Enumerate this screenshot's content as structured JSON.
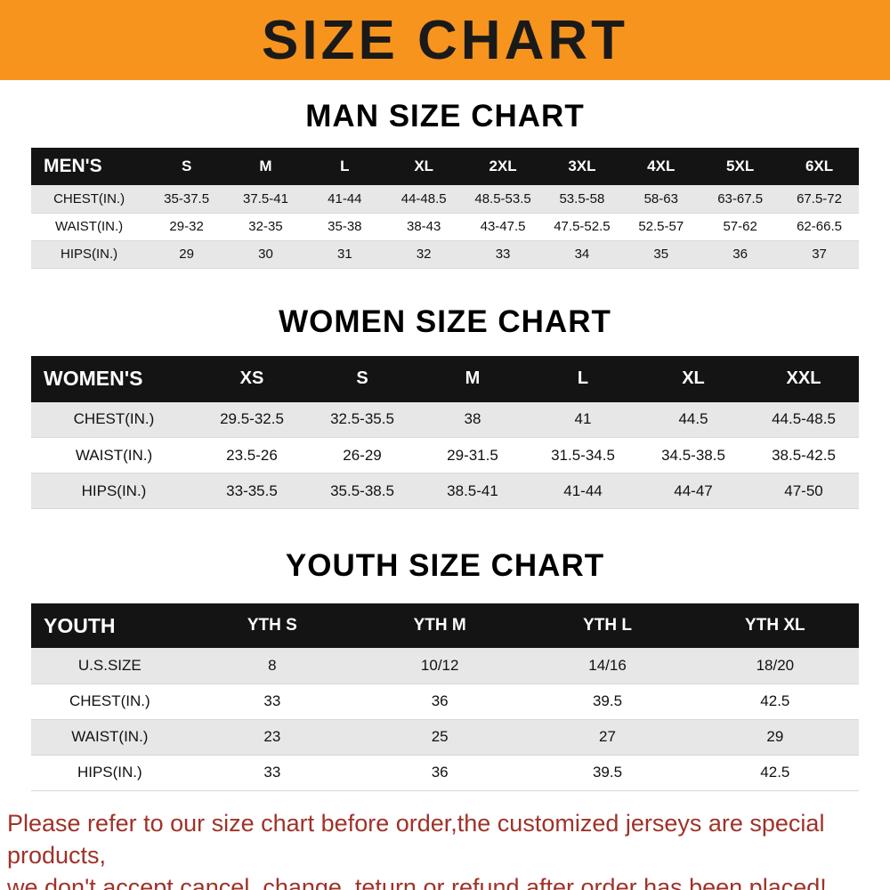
{
  "banner": {
    "title": "SIZE CHART"
  },
  "colors": {
    "banner_bg": "#F7941D",
    "banner_text": "#1A1A1A",
    "table_header_bg": "#141414",
    "table_header_text": "#FFFFFF",
    "row_alt_bg": "#E7E7E7",
    "row_bg": "#FFFFFF",
    "footer_text": "#A03229"
  },
  "chart_data": [
    {
      "type": "table",
      "title": "MAN SIZE CHART",
      "columns": [
        "MEN'S",
        "S",
        "M",
        "L",
        "XL",
        "2XL",
        "3XL",
        "4XL",
        "5XL",
        "6XL"
      ],
      "rows": [
        [
          "CHEST(IN.)",
          "35-37.5",
          "37.5-41",
          "41-44",
          "44-48.5",
          "48.5-53.5",
          "53.5-58",
          "58-63",
          "63-67.5",
          "67.5-72"
        ],
        [
          "WAIST(IN.)",
          "29-32",
          "32-35",
          "35-38",
          "38-43",
          "43-47.5",
          "47.5-52.5",
          "52.5-57",
          "57-62",
          "62-66.5"
        ],
        [
          "HIPS(IN.)",
          "29",
          "30",
          "31",
          "32",
          "33",
          "34",
          "35",
          "36",
          "37"
        ]
      ]
    },
    {
      "type": "table",
      "title": "WOMEN SIZE CHART",
      "columns": [
        "WOMEN'S",
        "XS",
        "S",
        "M",
        "L",
        "XL",
        "XXL"
      ],
      "rows": [
        [
          "CHEST(IN.)",
          "29.5-32.5",
          "32.5-35.5",
          "38",
          "41",
          "44.5",
          "44.5-48.5"
        ],
        [
          "WAIST(IN.)",
          "23.5-26",
          "26-29",
          "29-31.5",
          "31.5-34.5",
          "34.5-38.5",
          "38.5-42.5"
        ],
        [
          "HIPS(IN.)",
          "33-35.5",
          "35.5-38.5",
          "38.5-41",
          "41-44",
          "44-47",
          "47-50"
        ]
      ]
    },
    {
      "type": "table",
      "title": "YOUTH SIZE CHART",
      "columns": [
        "YOUTH",
        "YTH S",
        "YTH M",
        "YTH L",
        "YTH XL"
      ],
      "rows": [
        [
          "U.S.SIZE",
          "8",
          "10/12",
          "14/16",
          "18/20"
        ],
        [
          "CHEST(IN.)",
          "33",
          "36",
          "39.5",
          "42.5"
        ],
        [
          "WAIST(IN.)",
          "23",
          "25",
          "27",
          "29"
        ],
        [
          "HIPS(IN.)",
          "33",
          "36",
          "39.5",
          "42.5"
        ]
      ]
    }
  ],
  "footer": {
    "line1": "Please refer to our size chart before order,the customized jerseys are special products,",
    "line2": "we don't accept cancel, change, teturn or refund after order has been placed!"
  }
}
